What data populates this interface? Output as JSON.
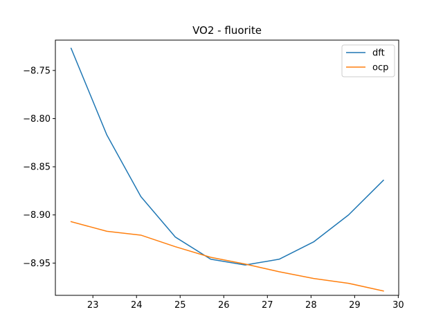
{
  "chart_data": {
    "type": "line",
    "title": "VO2 - fluorite",
    "xlabel": "",
    "ylabel": "",
    "xlim": [
      22.14,
      30.01
    ],
    "ylim": [
      -8.9835,
      -8.7185
    ],
    "x_ticks": [
      23,
      24,
      25,
      26,
      27,
      28,
      29,
      30
    ],
    "x_tick_labels": [
      "23",
      "24",
      "25",
      "26",
      "27",
      "28",
      "29",
      "30"
    ],
    "y_ticks": [
      -8.75,
      -8.8,
      -8.85,
      -8.9,
      -8.95
    ],
    "y_tick_labels": [
      "−8.75",
      "−8.80",
      "−8.85",
      "−8.90",
      "−8.95"
    ],
    "grid": false,
    "legend_position": "top-right",
    "colors": {
      "dft": "#1f77b4",
      "ocp": "#ff7f0e"
    },
    "series": [
      {
        "name": "dft",
        "x": [
          22.5,
          23.32,
          24.1,
          24.89,
          25.7,
          26.49,
          27.27,
          28.06,
          28.86,
          29.66
        ],
        "y": [
          -8.727,
          -8.817,
          -8.881,
          -8.923,
          -8.946,
          -8.952,
          -8.946,
          -8.928,
          -8.9,
          -8.864
        ]
      },
      {
        "name": "ocp",
        "x": [
          22.5,
          23.32,
          24.1,
          24.89,
          25.7,
          26.49,
          27.27,
          28.06,
          28.86,
          29.66
        ],
        "y": [
          -8.907,
          -8.917,
          -8.921,
          -8.933,
          -8.944,
          -8.951,
          -8.959,
          -8.966,
          -8.971,
          -8.979
        ]
      }
    ]
  }
}
